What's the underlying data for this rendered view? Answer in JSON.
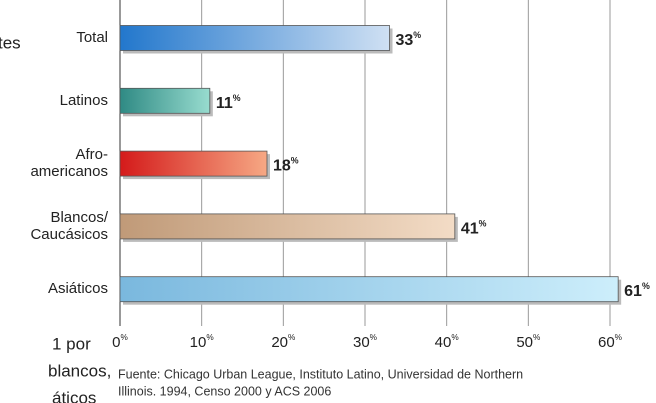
{
  "chart_data": {
    "type": "bar",
    "orientation": "horizontal",
    "categories": [
      "Total",
      "Latinos",
      "Afro-\namericanos",
      "Blancos/\nCaucásicos",
      "Asiáticos"
    ],
    "values": [
      33,
      11,
      18,
      41,
      61
    ],
    "value_labels": [
      "33%",
      "11%",
      "18%",
      "41%",
      "61%"
    ],
    "colors": [
      [
        "#2277cc",
        "#cfe0f3"
      ],
      [
        "#2f8a84",
        "#98dccf"
      ],
      [
        "#d41a1a",
        "#f6a884"
      ],
      [
        "#c09a78",
        "#f3dcc6"
      ],
      [
        "#7ab8de",
        "#cdeefb"
      ]
    ],
    "xlim": [
      0,
      60
    ],
    "xticks": [
      {
        "value": 0,
        "label": "0%"
      },
      {
        "value": 10,
        "label": "10%"
      },
      {
        "value": 20,
        "label": "20%"
      },
      {
        "value": 30,
        "label": "30%"
      },
      {
        "value": 40,
        "label": "40%"
      },
      {
        "value": 50,
        "label": "50%"
      },
      {
        "value": 60,
        "label": "60%"
      }
    ],
    "grid": true,
    "source": [
      "Fuente: Chicago Urban League, Instituto Latino, Universidad de Northern",
      "Illinois. 1994, Censo 2000 y ACS 2006"
    ]
  },
  "fragments": [
    "tes",
    "1 por",
    "blancos,",
    "áticos"
  ]
}
